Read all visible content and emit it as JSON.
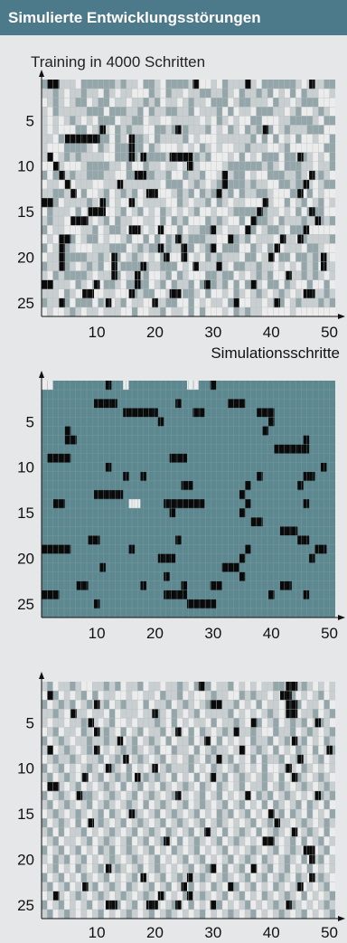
{
  "header": {
    "title": "Simulierte Entwicklungsstörungen"
  },
  "subtitle": "Training in 4000 Schritten",
  "colors": {
    "header_bg": "#4c7a8a",
    "panel_bg": "#e6e7e8",
    "black_cell": "#0a0a0a",
    "white_cell": "#ececec",
    "light_cell": "#c9cfd1",
    "gray_cell": "#95a6aa",
    "teal_cell": "#5e8890"
  },
  "chart_data": [
    {
      "type": "heatmap",
      "title": "Training in 4000 Schritten",
      "xlabel": "Simulationsschritte",
      "ylabel": "",
      "xlim": [
        1,
        50
      ],
      "ylim": [
        1,
        26
      ],
      "x_ticks": [
        10,
        20,
        30,
        40,
        50
      ],
      "y_ticks": [
        5,
        10,
        15,
        20,
        25
      ],
      "palette": "light",
      "rows": [
        "0111112000000101120012000011221201111120000001211100",
        "1101211011201211222012011211001101201101021202011221",
        "2101210021002112110102112101120002100111201121000222",
        "1201111100020001102011001102111020211200011210221012",
        "1212101212000211002112211111212012122002221100001200",
        "1212220021012010112200101011102120120102021011100022",
        "1120201211002012001201111021222111111020202120221220",
        "1222000012012000002012221212012122110111221022222200",
        "1121010111122000010000101010102221202120002001012120",
        "2221222100001120220112112101222210000001012000112110",
        "0201101100011220000011022011022111002122000110121012",
        "2112221112211111111112000210121010001011220010012100",
        "1100112022102101021222210102010210201100122200202122",
        "1102111101202122121111220121102012112222122021021021",
        "2011120212022102102120121210221221000020112120200022",
        "1011222112102011221120201022201012202000120111011010",
        "0211222110210012212122220211002121121021001200022222",
        "2121202100212210220202010100011220010211121112011110",
        "0212012221110002101001011002100200022012022111200122",
        "2111000011012021012120222021201011120021120020010112",
        "0112012101022100000110002121111012001101121212010211",
        "1201000012111021110221020122200100212101022111010121",
        "2211120120200120000210201102000102020012002012202202",
        "1112012212211222010022112001202212012101210121201101",
        "0111020002012102112211002202121120122112100210111010",
        "2122101211211122022110211202022212010112222212222222"
      ],
      "black_cells": [
        [
          2,
          1
        ],
        [
          3,
          1
        ],
        [
          27,
          1
        ],
        [
          36,
          1
        ],
        [
          47,
          1
        ],
        [
          11,
          6
        ],
        [
          24,
          6
        ],
        [
          39,
          6
        ],
        [
          5,
          7
        ],
        [
          6,
          7
        ],
        [
          7,
          7
        ],
        [
          8,
          7
        ],
        [
          9,
          7
        ],
        [
          10,
          7
        ],
        [
          16,
          7
        ],
        [
          16,
          8
        ],
        [
          2,
          9
        ],
        [
          16,
          9
        ],
        [
          18,
          9
        ],
        [
          23,
          9
        ],
        [
          24,
          9
        ],
        [
          25,
          9
        ],
        [
          26,
          9
        ],
        [
          45,
          9
        ],
        [
          3,
          10
        ],
        [
          26,
          10
        ],
        [
          4,
          11
        ],
        [
          17,
          11
        ],
        [
          18,
          11
        ],
        [
          32,
          11
        ],
        [
          47,
          11
        ],
        [
          5,
          12
        ],
        [
          14,
          12
        ],
        [
          32,
          12
        ],
        [
          46,
          12
        ],
        [
          6,
          13
        ],
        [
          19,
          13
        ],
        [
          20,
          13
        ],
        [
          31,
          13
        ],
        [
          45,
          13
        ],
        [
          1,
          14
        ],
        [
          2,
          14
        ],
        [
          11,
          14
        ],
        [
          16,
          14
        ],
        [
          39,
          14
        ],
        [
          9,
          15
        ],
        [
          10,
          15
        ],
        [
          11,
          15
        ],
        [
          38,
          15
        ],
        [
          47,
          15
        ],
        [
          6,
          16
        ],
        [
          7,
          16
        ],
        [
          8,
          16
        ],
        [
          37,
          16
        ],
        [
          48,
          16
        ],
        [
          16,
          17
        ],
        [
          17,
          17
        ],
        [
          21,
          17
        ],
        [
          30,
          17
        ],
        [
          36,
          17
        ],
        [
          46,
          17
        ],
        [
          4,
          18
        ],
        [
          5,
          18
        ],
        [
          24,
          18
        ],
        [
          33,
          18
        ],
        [
          42,
          18
        ],
        [
          45,
          18
        ],
        [
          4,
          19
        ],
        [
          21,
          19
        ],
        [
          25,
          19
        ],
        [
          30,
          19
        ],
        [
          41,
          19
        ],
        [
          4,
          20
        ],
        [
          13,
          20
        ],
        [
          22,
          20
        ],
        [
          25,
          20
        ],
        [
          40,
          20
        ],
        [
          49,
          20
        ],
        [
          4,
          21
        ],
        [
          13,
          21
        ],
        [
          18,
          21
        ],
        [
          27,
          21
        ],
        [
          31,
          21
        ],
        [
          49,
          21
        ],
        [
          13,
          22
        ],
        [
          17,
          22
        ],
        [
          43,
          22
        ],
        [
          1,
          23
        ],
        [
          2,
          23
        ],
        [
          10,
          23
        ],
        [
          17,
          23
        ],
        [
          29,
          23
        ],
        [
          37,
          23
        ],
        [
          8,
          24
        ],
        [
          9,
          24
        ],
        [
          16,
          24
        ],
        [
          23,
          24
        ],
        [
          24,
          24
        ],
        [
          46,
          24
        ],
        [
          47,
          24
        ],
        [
          4,
          25
        ],
        [
          12,
          25
        ],
        [
          20,
          25
        ],
        [
          34,
          25
        ],
        [
          41,
          25
        ]
      ]
    },
    {
      "type": "heatmap",
      "title": "",
      "xlabel": "",
      "ylabel": "",
      "xlim": [
        1,
        50
      ],
      "ylim": [
        1,
        26
      ],
      "x_ticks": [
        10,
        20,
        30,
        40,
        50
      ],
      "y_ticks": [
        5,
        10,
        15,
        20,
        25
      ],
      "palette": "teal",
      "white_cells": [
        [
          1,
          1
        ],
        [
          2,
          1
        ],
        [
          15,
          1
        ],
        [
          26,
          1
        ],
        [
          27,
          1
        ],
        [
          16,
          14
        ],
        [
          17,
          14
        ]
      ],
      "rows": [],
      "black_cells": [
        [
          12,
          1
        ],
        [
          30,
          1
        ],
        [
          10,
          3
        ],
        [
          11,
          3
        ],
        [
          12,
          3
        ],
        [
          13,
          3
        ],
        [
          24,
          3
        ],
        [
          33,
          3
        ],
        [
          34,
          3
        ],
        [
          35,
          3
        ],
        [
          15,
          4
        ],
        [
          16,
          4
        ],
        [
          17,
          4
        ],
        [
          18,
          4
        ],
        [
          19,
          4
        ],
        [
          20,
          4
        ],
        [
          27,
          4
        ],
        [
          28,
          4
        ],
        [
          38,
          4
        ],
        [
          39,
          4
        ],
        [
          40,
          4
        ],
        [
          21,
          5
        ],
        [
          40,
          5
        ],
        [
          5,
          6
        ],
        [
          39,
          6
        ],
        [
          5,
          7
        ],
        [
          6,
          7
        ],
        [
          46,
          7
        ],
        [
          41,
          8
        ],
        [
          42,
          8
        ],
        [
          43,
          8
        ],
        [
          44,
          8
        ],
        [
          45,
          8
        ],
        [
          46,
          8
        ],
        [
          2,
          9
        ],
        [
          3,
          9
        ],
        [
          4,
          9
        ],
        [
          5,
          9
        ],
        [
          23,
          9
        ],
        [
          24,
          9
        ],
        [
          25,
          9
        ],
        [
          12,
          10
        ],
        [
          49,
          10
        ],
        [
          15,
          11
        ],
        [
          18,
          11
        ],
        [
          38,
          11
        ],
        [
          46,
          11
        ],
        [
          47,
          11
        ],
        [
          25,
          12
        ],
        [
          26,
          12
        ],
        [
          36,
          12
        ],
        [
          45,
          12
        ],
        [
          10,
          13
        ],
        [
          11,
          13
        ],
        [
          12,
          13
        ],
        [
          13,
          13
        ],
        [
          14,
          13
        ],
        [
          35,
          13
        ],
        [
          3,
          14
        ],
        [
          4,
          14
        ],
        [
          22,
          14
        ],
        [
          23,
          14
        ],
        [
          24,
          14
        ],
        [
          25,
          14
        ],
        [
          26,
          14
        ],
        [
          27,
          14
        ],
        [
          28,
          14
        ],
        [
          36,
          14
        ],
        [
          46,
          14
        ],
        [
          23,
          15
        ],
        [
          35,
          15
        ],
        [
          37,
          16
        ],
        [
          38,
          16
        ],
        [
          42,
          17
        ],
        [
          43,
          17
        ],
        [
          44,
          17
        ],
        [
          9,
          18
        ],
        [
          10,
          18
        ],
        [
          24,
          18
        ],
        [
          45,
          18
        ],
        [
          46,
          18
        ],
        [
          1,
          19
        ],
        [
          2,
          19
        ],
        [
          3,
          19
        ],
        [
          4,
          19
        ],
        [
          5,
          19
        ],
        [
          16,
          19
        ],
        [
          36,
          19
        ],
        [
          48,
          19
        ],
        [
          49,
          19
        ],
        [
          21,
          20
        ],
        [
          22,
          20
        ],
        [
          23,
          20
        ],
        [
          35,
          20
        ],
        [
          47,
          20
        ],
        [
          11,
          21
        ],
        [
          32,
          21
        ],
        [
          33,
          21
        ],
        [
          34,
          21
        ],
        [
          22,
          22
        ],
        [
          35,
          22
        ],
        [
          7,
          23
        ],
        [
          8,
          23
        ],
        [
          18,
          23
        ],
        [
          25,
          23
        ],
        [
          30,
          23
        ],
        [
          31,
          23
        ],
        [
          42,
          23
        ],
        [
          43,
          23
        ],
        [
          1,
          24
        ],
        [
          2,
          24
        ],
        [
          3,
          24
        ],
        [
          22,
          24
        ],
        [
          23,
          24
        ],
        [
          24,
          24
        ],
        [
          25,
          24
        ],
        [
          40,
          24
        ],
        [
          46,
          24
        ],
        [
          10,
          25
        ],
        [
          26,
          25
        ],
        [
          27,
          25
        ],
        [
          28,
          25
        ],
        [
          29,
          25
        ],
        [
          30,
          25
        ]
      ]
    },
    {
      "type": "heatmap",
      "title": "",
      "xlabel": "",
      "ylabel": "",
      "xlim": [
        1,
        50
      ],
      "ylim": [
        1,
        26
      ],
      "x_ticks": [
        10,
        20,
        30,
        40,
        50
      ],
      "y_ticks": [
        5,
        10,
        15,
        20,
        25
      ],
      "palette": "light",
      "rows": [
        "1021101221101021102112110120002110212121100121012121",
        "2102121020211221221120110212210112201011212102121021",
        "0210102101102101120211021012102111021202112120211202",
        "1101211121120211121101201210211110212121012102110210",
        "1211211011210221211101202121120211012202102101021012",
        "2102112012101202102110211202012101011012201102101210",
        "0210121101101121021012021102102021212011021021021201",
        "1021012101212101012102201120210112102101202120120210",
        "2101101211021012101210212101201210212020110210121021",
        "0210212101210120212121011102120121012120221012012121",
        "1021012021021010210101202120212102101210120210121012",
        "2101210212101202102120121012012012102110210121012101",
        "0210121001210121021012102121021021210201021012121010",
        "1021012102101210120210121021012102102120201210201202",
        "2101210121020121012102101210212010210212110201202120",
        "0210120211012102101210210121021012121021021121012101",
        "1020211021210121021012012102101202101202101212101202",
        "2102112102101210210210120210121021012121012102021021",
        "0210210212010210121021201210212102121012102101212102",
        "1201021021210121012102121021021210210120121012021021",
        "2102120121021012102101212102101202102121021021202121",
        "0210212012102121021210210121012101210210210120121012",
        "1021021210210120121021021202120121021021201210212102",
        "2101210121012101210120212021012102102120121012021210",
        "0210212102121021021212101202121021210212101201212101",
        "1021012121021210121021012121021210121021210121021210"
      ],
      "black_cells": [
        [
          28,
          1
        ],
        [
          43,
          1
        ],
        [
          44,
          1
        ],
        [
          2,
          2
        ],
        [
          42,
          2
        ],
        [
          43,
          2
        ],
        [
          10,
          3
        ],
        [
          30,
          3
        ],
        [
          31,
          3
        ],
        [
          43,
          3
        ],
        [
          44,
          3
        ],
        [
          6,
          4
        ],
        [
          20,
          4
        ],
        [
          43,
          4
        ],
        [
          44,
          4
        ],
        [
          9,
          5
        ],
        [
          37,
          5
        ],
        [
          48,
          5
        ],
        [
          10,
          6
        ],
        [
          24,
          6
        ],
        [
          34,
          6
        ],
        [
          14,
          7
        ],
        [
          29,
          7
        ],
        [
          44,
          7
        ],
        [
          2,
          8
        ],
        [
          10,
          8
        ],
        [
          35,
          8
        ],
        [
          50,
          8
        ],
        [
          15,
          9
        ],
        [
          31,
          9
        ],
        [
          45,
          9
        ],
        [
          12,
          10
        ],
        [
          20,
          10
        ],
        [
          43,
          10
        ],
        [
          8,
          11
        ],
        [
          17,
          11
        ],
        [
          30,
          11
        ],
        [
          44,
          11
        ],
        [
          2,
          12
        ],
        [
          3,
          12
        ],
        [
          7,
          13
        ],
        [
          24,
          13
        ],
        [
          36,
          13
        ],
        [
          48,
          13
        ],
        [
          16,
          15
        ],
        [
          40,
          15
        ],
        [
          9,
          16
        ],
        [
          41,
          16
        ],
        [
          29,
          17
        ],
        [
          44,
          17
        ],
        [
          22,
          18
        ],
        [
          39,
          18
        ],
        [
          40,
          18
        ],
        [
          46,
          19
        ],
        [
          47,
          19
        ],
        [
          47,
          20
        ],
        [
          12,
          21
        ],
        [
          30,
          21
        ],
        [
          37,
          21
        ],
        [
          18,
          22
        ],
        [
          26,
          22
        ],
        [
          47,
          22
        ],
        [
          8,
          23
        ],
        [
          25,
          23
        ],
        [
          33,
          23
        ],
        [
          45,
          23
        ],
        [
          3,
          24
        ],
        [
          21,
          24
        ],
        [
          26,
          24
        ],
        [
          12,
          25
        ],
        [
          13,
          25
        ],
        [
          19,
          25
        ],
        [
          20,
          25
        ],
        [
          24,
          25
        ],
        [
          30,
          25
        ],
        [
          43,
          25
        ]
      ]
    }
  ]
}
